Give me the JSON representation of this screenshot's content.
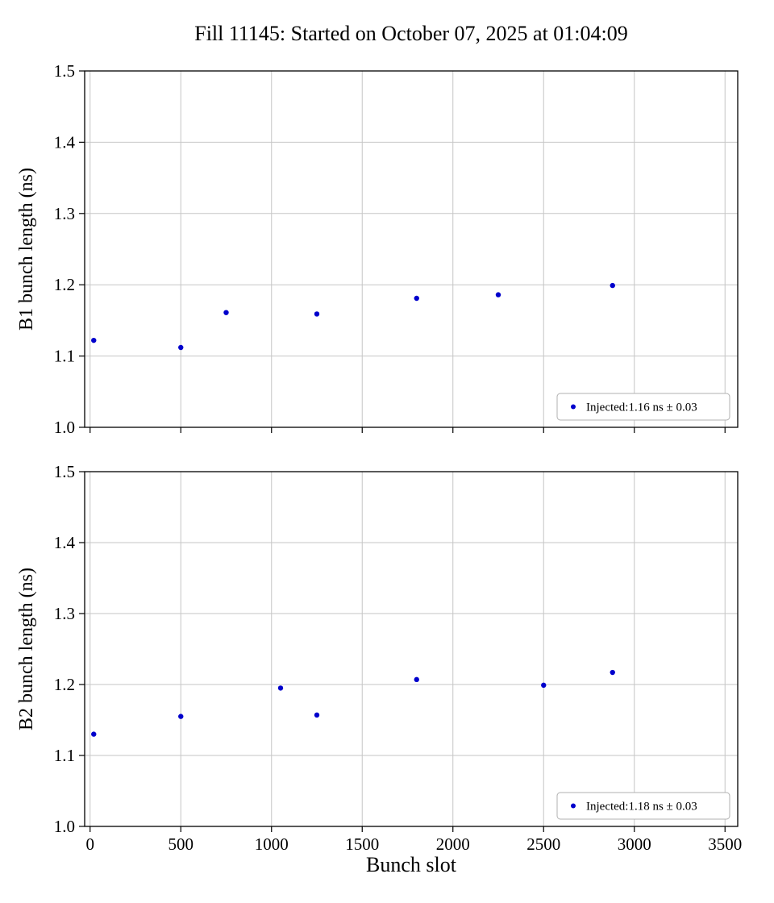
{
  "figure": {
    "title": "Fill 11145: Started on October 07, 2025 at 01:04:09",
    "xlabel": "Bunch slot",
    "background": "#ffffff"
  },
  "colors": {
    "marker": "#0000cc",
    "grid": "#c6c6c6",
    "frame": "#000000",
    "legend_border": "#b0b0b0",
    "legend_fill": "#ffffff"
  },
  "chart_data": [
    {
      "type": "scatter",
      "name": "B1",
      "title": "",
      "xlabel": "",
      "ylabel": "B1 bunch length (ns)",
      "legend": "Injected:1.16 ns ± 0.03",
      "legend_position": "lower right",
      "grid": true,
      "xlim": [
        -30,
        3570
      ],
      "ylim": [
        1.0,
        1.5
      ],
      "xticks": [
        0,
        500,
        1000,
        1500,
        2000,
        2500,
        3000,
        3500
      ],
      "yticks": [
        "1.0",
        "1.1",
        "1.2",
        "1.3",
        "1.4",
        "1.5"
      ],
      "x": [
        20,
        500,
        750,
        1250,
        1800,
        2250,
        2880
      ],
      "y": [
        1.122,
        1.112,
        1.161,
        1.159,
        1.181,
        1.186,
        1.199
      ],
      "show_x_tick_labels": false
    },
    {
      "type": "scatter",
      "name": "B2",
      "title": "",
      "xlabel": "Bunch slot",
      "ylabel": "B2 bunch length (ns)",
      "legend": "Injected:1.18 ns ± 0.03",
      "legend_position": "lower right",
      "grid": true,
      "xlim": [
        -30,
        3570
      ],
      "ylim": [
        1.0,
        1.5
      ],
      "xticks": [
        0,
        500,
        1000,
        1500,
        2000,
        2500,
        3000,
        3500
      ],
      "yticks": [
        "1.0",
        "1.1",
        "1.2",
        "1.3",
        "1.4",
        "1.5"
      ],
      "x": [
        20,
        500,
        1050,
        1250,
        1800,
        2500,
        2880
      ],
      "y": [
        1.13,
        1.155,
        1.195,
        1.157,
        1.207,
        1.199,
        1.217
      ],
      "show_x_tick_labels": true
    }
  ]
}
